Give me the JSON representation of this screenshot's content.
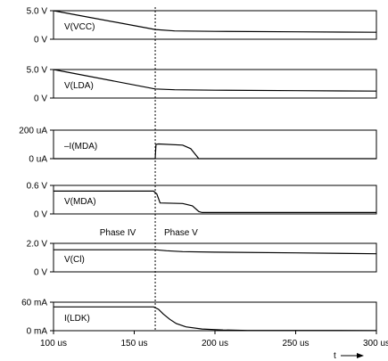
{
  "chart_data": {
    "type": "line",
    "x_unit": "us",
    "xlim": [
      100,
      300
    ],
    "x_ticks": [
      "100 us",
      "150 us",
      "200 us",
      "250 us",
      "300 us"
    ],
    "x_tick_values": [
      100,
      150,
      200,
      250,
      300
    ],
    "time_axis_label": "t",
    "phase_marker": {
      "x": 163,
      "label_left": "Phase IV",
      "label_right": "Phase V"
    },
    "panels": [
      {
        "name": "V(VCC)",
        "unit": "V",
        "ylim": [
          0,
          5.0
        ],
        "y_ticks": [
          "0 V",
          "5.0 V"
        ],
        "y_tick_values": [
          0,
          5.0
        ],
        "series": [
          {
            "name": "V(VCC)",
            "x": [
              100,
              163,
              175,
              200,
              250,
              300
            ],
            "y": [
              5.0,
              1.7,
              1.45,
              1.38,
              1.3,
              1.22
            ]
          }
        ]
      },
      {
        "name": "V(LDA)",
        "unit": "V",
        "ylim": [
          0,
          5.0
        ],
        "y_ticks": [
          "0 V",
          "5.0 V"
        ],
        "y_tick_values": [
          0,
          5.0
        ],
        "series": [
          {
            "name": "V(LDA)",
            "x": [
              100,
              163,
              175,
              200,
              250,
              300
            ],
            "y": [
              5.0,
              1.6,
              1.45,
              1.38,
              1.3,
              1.22
            ]
          }
        ]
      },
      {
        "name": "–I(MDA)",
        "unit": "uA",
        "ylim": [
          0,
          200
        ],
        "y_ticks": [
          "0 uA",
          "200 uA"
        ],
        "y_tick_values": [
          0,
          200
        ],
        "series": [
          {
            "name": "–I(MDA)",
            "x": [
              100,
              163,
              163.5,
              165,
              180,
              185,
              190,
              300
            ],
            "y": [
              0,
              0,
              100,
              103,
              95,
              70,
              0,
              0
            ]
          }
        ]
      },
      {
        "name": "V(MDA)",
        "unit": "V",
        "ylim": [
          0,
          0.6
        ],
        "y_ticks": [
          "0 V",
          "0.6 V"
        ],
        "y_tick_values": [
          0,
          0.6
        ],
        "series": [
          {
            "name": "V(MDA)",
            "x": [
              100,
              162,
              164,
              166,
              180,
              186,
              190,
              192,
              300
            ],
            "y": [
              0.48,
              0.48,
              0.42,
              0.23,
              0.22,
              0.17,
              0.05,
              0.03,
              0.03
            ]
          }
        ]
      },
      {
        "name": "V(Cl)",
        "unit": "V",
        "ylim": [
          0,
          2.0
        ],
        "y_ticks": [
          "0 V",
          "2.0 V"
        ],
        "y_tick_values": [
          0,
          2.0
        ],
        "series": [
          {
            "name": "V(Cl)",
            "x": [
              100,
              163,
              170,
              180,
              200,
              250,
              300
            ],
            "y": [
              1.55,
              1.55,
              1.48,
              1.42,
              1.38,
              1.33,
              1.27
            ]
          }
        ]
      },
      {
        "name": "I(LDK)",
        "unit": "mA",
        "ylim": [
          0,
          60
        ],
        "y_ticks": [
          "0 mA",
          "60 mA"
        ],
        "y_tick_values": [
          0,
          60
        ],
        "series": [
          {
            "name": "I(LDK)",
            "x": [
              100,
              162,
              165,
              168,
              172,
              176,
              182,
              192,
              205,
              220,
              300
            ],
            "y": [
              50,
              50,
              45,
              35,
              24,
              15,
              8,
              3.5,
              1.5,
              0.5,
              0.3
            ]
          }
        ]
      }
    ]
  }
}
